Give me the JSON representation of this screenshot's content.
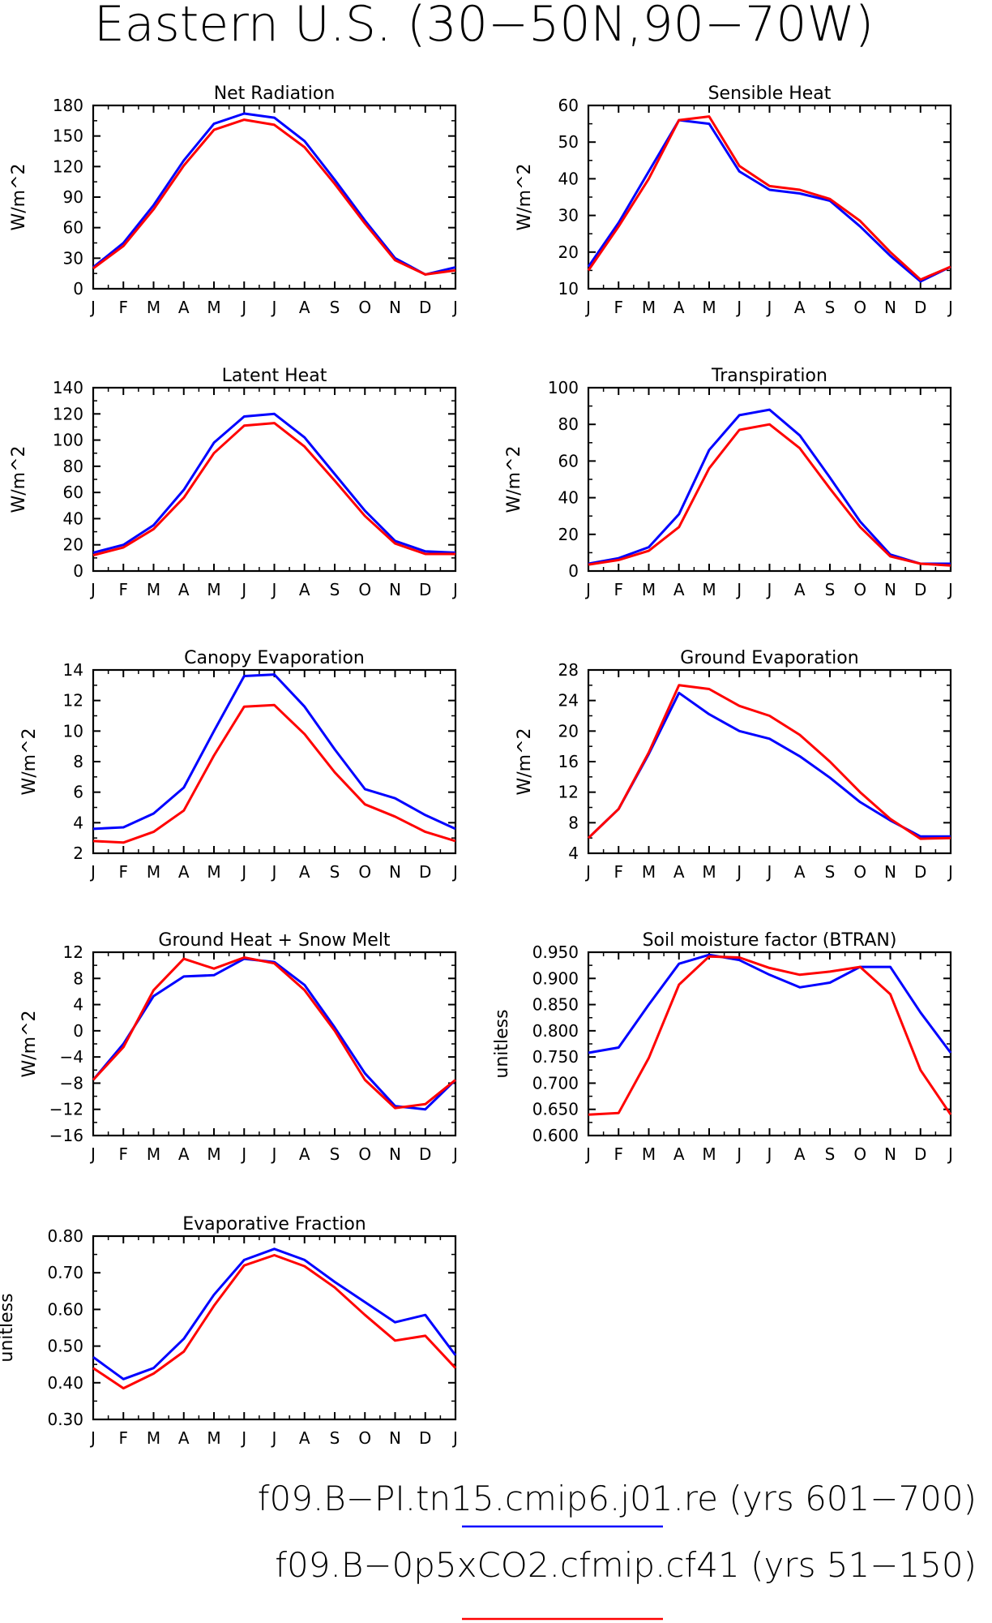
{
  "figure": {
    "title": "Eastern U.S. (30−50N,90−70W)"
  },
  "colors": {
    "blue_series": "#0000ff",
    "red_series": "#ff0000",
    "axis": "#000000"
  },
  "legend": [
    {
      "label": "f09.B−PI.tn15.cmip6.j01.re  (yrs 601−700)",
      "color": "#0000ff"
    },
    {
      "label": "f09.B−0p5xCO2.cfmip.cf41  (yrs 51−150)",
      "color": "#ff0000"
    }
  ],
  "chart_data": [
    {
      "type": "line",
      "title": "Net Radiation",
      "ylabel": "W/m^2",
      "categories": [
        "J",
        "F",
        "M",
        "A",
        "M",
        "J",
        "J",
        "A",
        "S",
        "O",
        "N",
        "D",
        "J"
      ],
      "ylim": [
        0,
        180
      ],
      "yticks": [
        0,
        30,
        60,
        90,
        120,
        150,
        180
      ],
      "series": [
        {
          "color": "#0000ff",
          "values": [
            21,
            45,
            82,
            126,
            162,
            172,
            168,
            145,
            107,
            67,
            30,
            14,
            21
          ]
        },
        {
          "color": "#ff0000",
          "values": [
            20,
            42,
            78,
            121,
            156,
            166,
            161,
            139,
            103,
            64,
            28,
            14,
            18
          ]
        }
      ]
    },
    {
      "type": "line",
      "title": "Sensible Heat",
      "ylabel": "W/m^2",
      "categories": [
        "J",
        "F",
        "M",
        "A",
        "M",
        "J",
        "J",
        "A",
        "S",
        "O",
        "N",
        "D",
        "J"
      ],
      "ylim": [
        10,
        60
      ],
      "yticks": [
        10,
        20,
        30,
        40,
        50,
        60
      ],
      "series": [
        {
          "color": "#0000ff",
          "values": [
            16,
            28,
            42,
            56,
            55,
            42,
            37,
            36,
            34,
            27,
            19,
            12,
            16
          ]
        },
        {
          "color": "#ff0000",
          "values": [
            15,
            27,
            40,
            56,
            57,
            43.5,
            38,
            37,
            34.5,
            28.5,
            20,
            12.5,
            16
          ]
        }
      ]
    },
    {
      "type": "line",
      "title": "Latent Heat",
      "ylabel": "W/m^2",
      "categories": [
        "J",
        "F",
        "M",
        "A",
        "M",
        "J",
        "J",
        "A",
        "S",
        "O",
        "N",
        "D",
        "J"
      ],
      "ylim": [
        0,
        140
      ],
      "yticks": [
        0,
        20,
        40,
        60,
        80,
        100,
        120,
        140
      ],
      "series": [
        {
          "color": "#0000ff",
          "values": [
            14,
            20,
            35,
            62,
            98,
            118,
            120,
            102,
            74,
            46,
            23,
            15,
            14
          ]
        },
        {
          "color": "#ff0000",
          "values": [
            12,
            18,
            32,
            56,
            90,
            111,
            113,
            95,
            69,
            42,
            21,
            13,
            13
          ]
        }
      ]
    },
    {
      "type": "line",
      "title": "Transpiration",
      "ylabel": "W/m^2",
      "categories": [
        "J",
        "F",
        "M",
        "A",
        "M",
        "J",
        "J",
        "A",
        "S",
        "O",
        "N",
        "D",
        "J"
      ],
      "ylim": [
        0,
        100
      ],
      "yticks": [
        0,
        20,
        40,
        60,
        80,
        100
      ],
      "series": [
        {
          "color": "#0000ff",
          "values": [
            4,
            7,
            13,
            31,
            66,
            85,
            88,
            74,
            51,
            27,
            9,
            4,
            4
          ]
        },
        {
          "color": "#ff0000",
          "values": [
            3.5,
            6,
            11,
            24,
            56,
            77,
            80,
            67,
            45,
            24,
            8,
            4,
            3
          ]
        }
      ]
    },
    {
      "type": "line",
      "title": "Canopy Evaporation",
      "ylabel": "W/m^2",
      "categories": [
        "J",
        "F",
        "M",
        "A",
        "M",
        "J",
        "J",
        "A",
        "S",
        "O",
        "N",
        "D",
        "J"
      ],
      "ylim": [
        2,
        14
      ],
      "yticks": [
        2,
        4,
        6,
        8,
        10,
        12,
        14
      ],
      "series": [
        {
          "color": "#0000ff",
          "values": [
            3.6,
            3.7,
            4.6,
            6.3,
            10,
            13.6,
            13.7,
            11.6,
            8.8,
            6.2,
            5.6,
            4.5,
            3.6
          ]
        },
        {
          "color": "#ff0000",
          "values": [
            2.8,
            2.7,
            3.4,
            4.8,
            8.4,
            11.6,
            11.7,
            9.8,
            7.3,
            5.2,
            4.4,
            3.4,
            2.8
          ]
        }
      ]
    },
    {
      "type": "line",
      "title": "Ground Evaporation",
      "ylabel": "W/m^2",
      "categories": [
        "J",
        "F",
        "M",
        "A",
        "M",
        "J",
        "J",
        "A",
        "S",
        "O",
        "N",
        "D",
        "J"
      ],
      "ylim": [
        4,
        28
      ],
      "yticks": [
        4,
        8,
        12,
        16,
        20,
        24,
        28
      ],
      "series": [
        {
          "color": "#0000ff",
          "values": [
            6,
            9.8,
            17,
            25,
            22.2,
            20,
            19,
            16.7,
            13.9,
            10.7,
            8.3,
            6.2,
            6.2
          ]
        },
        {
          "color": "#ff0000",
          "values": [
            6,
            9.8,
            17.2,
            26,
            25.5,
            23.3,
            22,
            19.5,
            16,
            12,
            8.5,
            5.9,
            6
          ]
        }
      ]
    },
    {
      "type": "line",
      "title": "Ground Heat + Snow Melt",
      "ylabel": "W/m^2",
      "categories": [
        "J",
        "F",
        "M",
        "A",
        "M",
        "J",
        "J",
        "A",
        "S",
        "O",
        "N",
        "D",
        "J"
      ],
      "ylim": [
        -16,
        12
      ],
      "yticks": [
        -16,
        -12,
        -8,
        -4,
        0,
        4,
        8,
        12
      ],
      "series": [
        {
          "color": "#0000ff",
          "values": [
            -7.5,
            -2,
            5.3,
            8.3,
            8.5,
            11,
            10.5,
            7,
            0.5,
            -6.5,
            -11.5,
            -12,
            -7.5
          ]
        },
        {
          "color": "#ff0000",
          "values": [
            -7.5,
            -2.5,
            6.2,
            11,
            9.5,
            11.2,
            10.3,
            6.2,
            0,
            -7.5,
            -11.8,
            -11.2,
            -7.5
          ]
        }
      ]
    },
    {
      "type": "line",
      "title": "Soil moisture factor (BTRAN)",
      "ylabel": "unitless",
      "categories": [
        "J",
        "F",
        "M",
        "A",
        "M",
        "J",
        "J",
        "A",
        "S",
        "O",
        "N",
        "D",
        "J"
      ],
      "ylim": [
        0.6,
        0.95
      ],
      "yticks": [
        0.6,
        0.65,
        0.7,
        0.75,
        0.8,
        0.85,
        0.9,
        0.95
      ],
      "ytick_labels": [
        "0.600",
        "0.650",
        "0.700",
        "0.750",
        "0.800",
        "0.850",
        "0.900",
        "0.950"
      ],
      "series": [
        {
          "color": "#0000ff",
          "values": [
            0.758,
            0.768,
            0.85,
            0.928,
            0.945,
            0.935,
            0.907,
            0.883,
            0.892,
            0.922,
            0.922,
            0.835,
            0.758
          ]
        },
        {
          "color": "#ff0000",
          "values": [
            0.64,
            0.643,
            0.748,
            0.888,
            0.942,
            0.94,
            0.92,
            0.907,
            0.913,
            0.922,
            0.87,
            0.725,
            0.64
          ]
        }
      ]
    },
    {
      "type": "line",
      "title": "Evaporative Fraction",
      "ylabel": "unitless",
      "categories": [
        "J",
        "F",
        "M",
        "A",
        "M",
        "J",
        "J",
        "A",
        "S",
        "O",
        "N",
        "D",
        "J"
      ],
      "ylim": [
        0.3,
        0.8
      ],
      "yticks": [
        0.3,
        0.4,
        0.5,
        0.6,
        0.7,
        0.8
      ],
      "ytick_labels": [
        "0.30",
        "0.40",
        "0.50",
        "0.60",
        "0.70",
        "0.80"
      ],
      "series": [
        {
          "color": "#0000ff",
          "values": [
            0.47,
            0.41,
            0.44,
            0.52,
            0.64,
            0.735,
            0.765,
            0.735,
            0.675,
            0.62,
            0.565,
            0.585,
            0.475
          ]
        },
        {
          "color": "#ff0000",
          "values": [
            0.44,
            0.385,
            0.425,
            0.485,
            0.61,
            0.72,
            0.748,
            0.718,
            0.66,
            0.585,
            0.515,
            0.528,
            0.44
          ]
        }
      ]
    }
  ]
}
